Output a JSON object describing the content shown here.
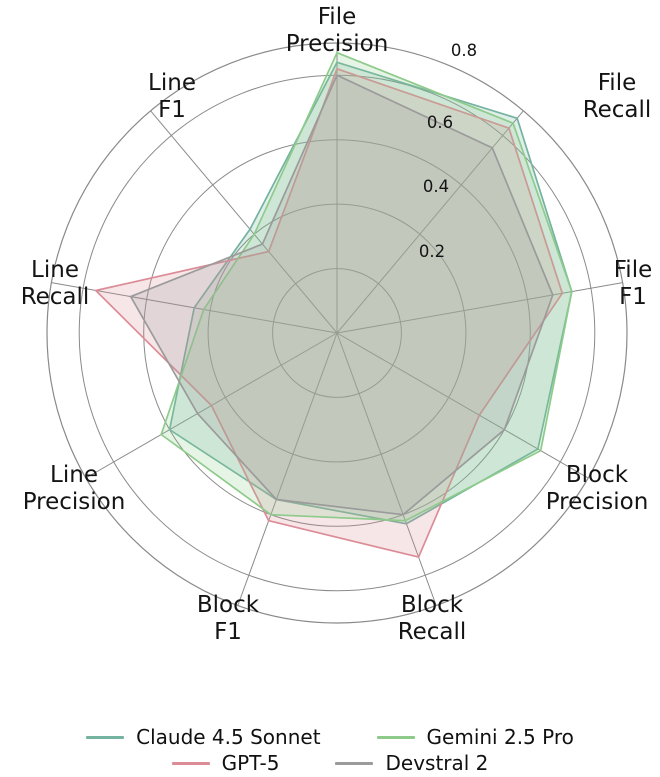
{
  "chart_data": {
    "type": "radar",
    "categories": [
      "File Precision",
      "File Recall",
      "File F1",
      "Block Precision",
      "Block Recall",
      "Block F1",
      "Line Precision",
      "Line Recall",
      "Line F1"
    ],
    "ticks": [
      0.2,
      0.4,
      0.6,
      0.8
    ],
    "tick_labels": [
      "0.2",
      "0.4",
      "0.6",
      "0.8"
    ],
    "rmax": 0.9,
    "grid": true,
    "grid_color": "#8a8a8a",
    "text_color": "#141414",
    "legend_position": "bottom",
    "series": [
      {
        "name": "Claude 4.5 Sonnet",
        "color": "#74b3a0",
        "values": [
          0.84,
          0.87,
          0.74,
          0.72,
          0.63,
          0.55,
          0.6,
          0.45,
          0.42
        ]
      },
      {
        "name": "GPT-5",
        "color": "#dc8c96",
        "values": [
          0.82,
          0.83,
          0.71,
          0.51,
          0.74,
          0.62,
          0.45,
          0.76,
          0.33
        ]
      },
      {
        "name": "Gemini 2.5 Pro",
        "color": "#8ecb8b",
        "values": [
          0.87,
          0.85,
          0.74,
          0.73,
          0.62,
          0.6,
          0.63,
          0.42,
          0.4
        ]
      },
      {
        "name": "Devstral 2",
        "color": "#9b9b9b",
        "values": [
          0.8,
          0.75,
          0.68,
          0.6,
          0.6,
          0.55,
          0.5,
          0.65,
          0.36
        ]
      }
    ]
  }
}
